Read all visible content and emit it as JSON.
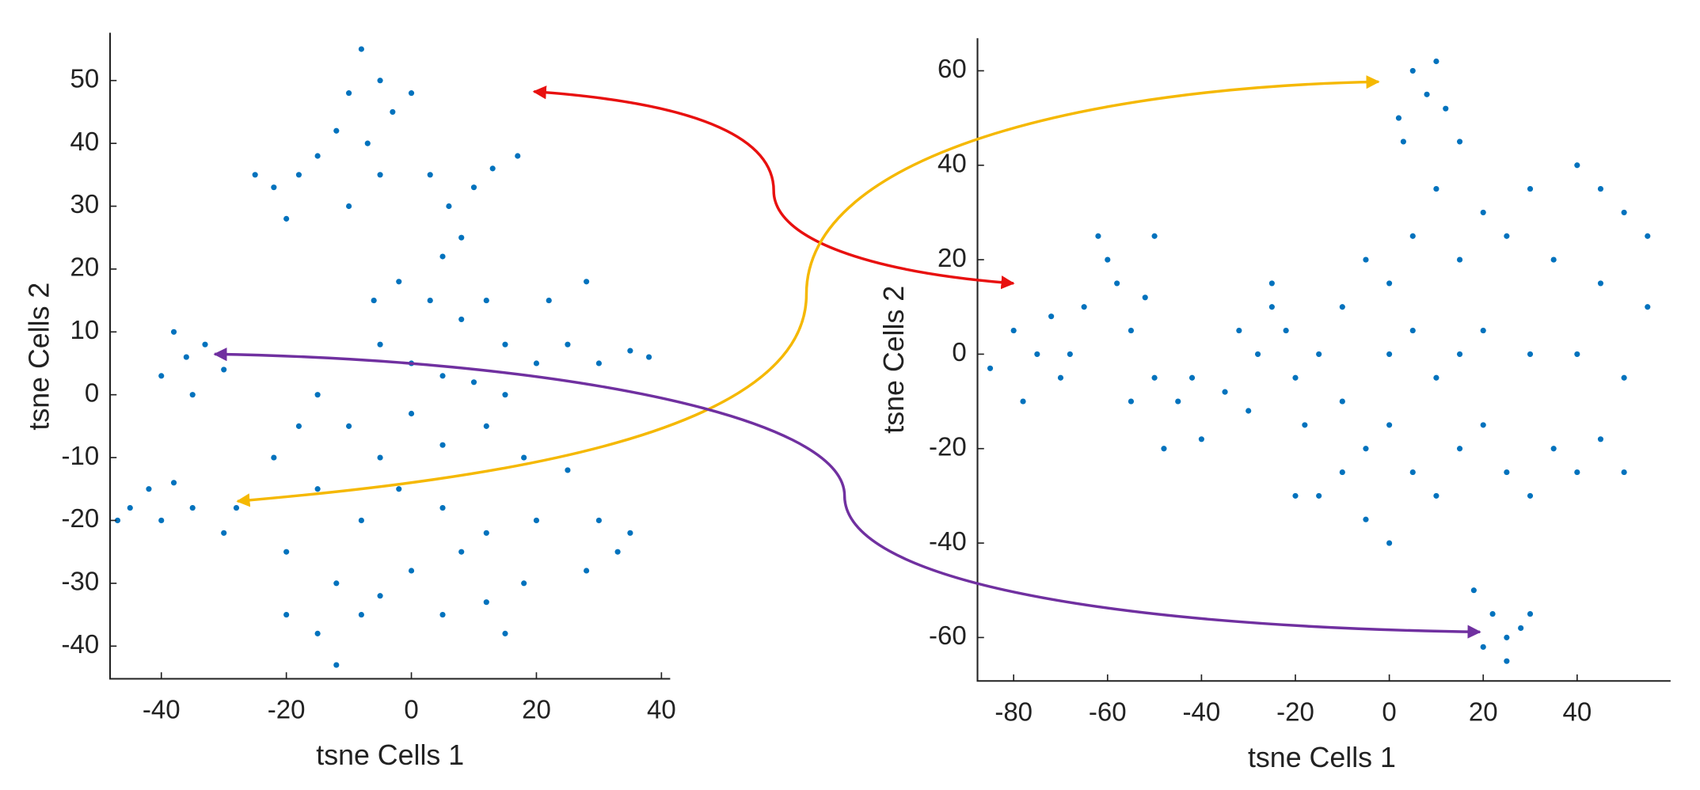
{
  "chart_data": [
    {
      "type": "scatter",
      "xlabel": "tsne Cells 1",
      "ylabel": "tsne Cells 2",
      "xlim": [
        -48.2,
        41.4
      ],
      "ylim": [
        -45.2,
        57.6
      ],
      "xticks": [
        -40,
        -20,
        0,
        20,
        40
      ],
      "yticks": [
        -40,
        -30,
        -20,
        -10,
        0,
        10,
        20,
        30,
        40,
        50
      ],
      "series": [
        {
          "color": "#0072bd",
          "x": [
            -8,
            -5,
            -10,
            -3,
            -12,
            -7,
            0,
            -15,
            -18,
            -22,
            -25,
            -20,
            -10,
            -5,
            3,
            6,
            10,
            13,
            17,
            8,
            5,
            -2,
            3,
            -6,
            8,
            12,
            -5,
            0,
            5,
            10,
            15,
            20,
            25,
            30,
            35,
            38,
            22,
            28,
            15,
            -15,
            -18,
            -10,
            -5,
            0,
            5,
            12,
            18,
            25,
            30,
            33,
            28,
            35,
            20,
            12,
            5,
            -2,
            -8,
            -15,
            -20,
            -12,
            -8,
            -15,
            -12,
            -5,
            0,
            5,
            12,
            15,
            18,
            8,
            -20,
            -22,
            -38,
            -36,
            -33,
            -40,
            -35,
            -30,
            -42,
            -45,
            -40,
            -38,
            -35,
            -47,
            -30,
            -28
          ],
          "values": [
            55,
            50,
            48,
            45,
            42,
            40,
            48,
            38,
            35,
            33,
            35,
            28,
            30,
            35,
            35,
            30,
            33,
            36,
            38,
            25,
            22,
            18,
            15,
            15,
            12,
            15,
            8,
            5,
            3,
            2,
            0,
            5,
            8,
            5,
            7,
            6,
            15,
            18,
            8,
            0,
            -5,
            -5,
            -10,
            -3,
            -8,
            -5,
            -10,
            -12,
            -20,
            -25,
            -28,
            -22,
            -20,
            -22,
            -18,
            -15,
            -20,
            -15,
            -25,
            -30,
            -35,
            -38,
            -43,
            -32,
            -28,
            -35,
            -33,
            -38,
            -30,
            -25,
            -35,
            -10,
            10,
            6,
            8,
            3,
            0,
            4,
            -15,
            -18,
            -20,
            -14,
            -18,
            -20,
            -22,
            -18
          ]
        }
      ]
    },
    {
      "type": "scatter",
      "xlabel": "tsne Cells 1",
      "ylabel": "tsne Cells 2",
      "xlim": [
        -87.7,
        59.9
      ],
      "ylim": [
        -69.2,
        66.9
      ],
      "xticks": [
        -80,
        -60,
        -40,
        -20,
        0,
        20,
        40
      ],
      "yticks": [
        -60,
        -40,
        -20,
        0,
        20,
        40,
        60
      ],
      "series": [
        {
          "color": "#0072bd",
          "x": [
            5,
            8,
            2,
            10,
            12,
            3,
            15,
            -80,
            -75,
            -70,
            -85,
            -78,
            -72,
            -65,
            -60,
            -58,
            -52,
            -50,
            -62,
            -55,
            -68,
            -50,
            -45,
            -55,
            -48,
            -40,
            -42,
            -35,
            -30,
            -28,
            -25,
            -22,
            -20,
            -18,
            -32,
            -25,
            -20,
            -15,
            -10,
            -5,
            0,
            -5,
            0,
            5,
            10,
            15,
            20,
            25,
            30,
            35,
            40,
            45,
            50,
            10,
            0,
            5,
            15,
            20,
            30,
            40,
            50,
            55,
            45,
            35,
            25,
            15,
            5,
            0,
            -5,
            10,
            20,
            30,
            40,
            50,
            55,
            45,
            -10,
            -15,
            -10,
            25,
            22,
            28,
            20,
            25,
            30,
            18
          ],
          "values": [
            60,
            55,
            50,
            62,
            52,
            45,
            45,
            5,
            0,
            -5,
            -3,
            -10,
            8,
            10,
            20,
            15,
            12,
            25,
            25,
            5,
            0,
            -5,
            -10,
            -10,
            -20,
            -18,
            -5,
            -8,
            -12,
            0,
            10,
            5,
            -5,
            -15,
            5,
            15,
            -30,
            -30,
            -25,
            -35,
            -40,
            -20,
            -15,
            -25,
            -30,
            -20,
            -15,
            -25,
            -30,
            -20,
            -25,
            -18,
            -25,
            -5,
            0,
            5,
            0,
            5,
            0,
            0,
            -5,
            10,
            15,
            20,
            25,
            20,
            25,
            15,
            20,
            35,
            30,
            35,
            40,
            30,
            25,
            35,
            10,
            0,
            -10,
            -60,
            -55,
            -58,
            -62,
            -65,
            -55,
            -50
          ]
        }
      ]
    }
  ]
}
